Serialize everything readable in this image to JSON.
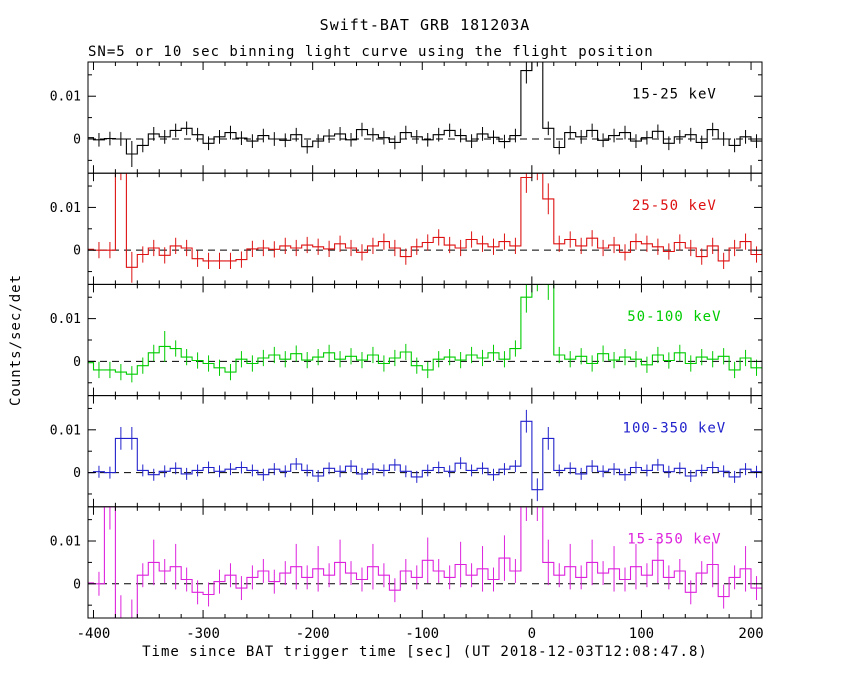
{
  "title": "Swift-BAT GRB 181203A",
  "subtitle": "SN=5 or 10 sec binning light curve using the flight position",
  "xlabel": "Time since BAT trigger time [sec] (UT 2018-12-03T12:08:47.8)",
  "ylabel": "Counts/sec/det",
  "chart_data": {
    "type": "line",
    "style": "stepped light curve with error bars, 5 stacked panels",
    "units_note": "values_milli and err_base_milli are in units of 0.001 counts/sec/det",
    "xlim": [
      -405,
      210
    ],
    "ylim_milli": [
      -8,
      18
    ],
    "x_start": -415,
    "x_step": 10,
    "bin_width_sec": 10,
    "xticks": [
      -400,
      -300,
      -200,
      -100,
      0,
      100,
      200
    ],
    "xtick_minor_step": 20,
    "yticks": [
      {
        "v": 0,
        "label": "0"
      },
      {
        "v": 10,
        "label": "0.01"
      }
    ],
    "ytick_minor": [
      -5,
      5,
      15
    ],
    "zero_line": "dashed",
    "series": [
      {
        "name": "15-25 keV",
        "color": "#000000",
        "err_base_milli": 1.6,
        "values_milli": [
          0,
          0.3,
          -0.2,
          0.1,
          0,
          -3.5,
          -1.5,
          1.2,
          0.5,
          2.0,
          2.5,
          1.0,
          -1.0,
          0.5,
          1.5,
          0.2,
          -0.5,
          0.8,
          0,
          -0.3,
          1.0,
          -1.8,
          -0.5,
          0.7,
          1.2,
          -0.2,
          2.2,
          1.0,
          0.3,
          -0.8,
          1.5,
          0.5,
          -0.2,
          1.0,
          2.0,
          0.8,
          -0.5,
          1.2,
          0.4,
          -0.6,
          0.8,
          16,
          20,
          2.5,
          -2.0,
          1.5,
          0.5,
          2.0,
          -0.3,
          0.8,
          1.5,
          -0.5,
          0.3,
          1.8,
          -1.0,
          0.5,
          1.0,
          -0.8,
          2.2,
          0,
          -1.5,
          0.5,
          -0.5
        ]
      },
      {
        "name": "25-50 keV",
        "color": "#dd1111",
        "err_base_milli": 1.9,
        "values_milli": [
          0,
          0.2,
          0,
          0,
          20,
          -4.0,
          -1.0,
          0.5,
          -1.2,
          1.0,
          0.5,
          -2.0,
          -2.5,
          -2.5,
          -2.5,
          -2.2,
          0.3,
          0.5,
          0.2,
          1.0,
          0.5,
          1.2,
          0.8,
          0.3,
          1.5,
          0.5,
          -0.5,
          1.0,
          2.0,
          0.5,
          -1.5,
          0.8,
          1.8,
          3.0,
          1.2,
          0.5,
          2.5,
          1.5,
          0.8,
          2.0,
          1.0,
          17,
          20,
          12,
          1.5,
          2.5,
          1.0,
          2.8,
          0.5,
          1.2,
          -0.5,
          2.0,
          1.5,
          0.8,
          -0.3,
          1.8,
          0.5,
          -1.5,
          1.0,
          -2.5,
          0.5,
          2.0,
          -1.0
        ]
      },
      {
        "name": "50-100 keV",
        "color": "#00cc00",
        "err_base_milli": 1.9,
        "values_milli": [
          0,
          -0.3,
          -2.0,
          -2.0,
          -2.5,
          -3.0,
          -1.0,
          2.0,
          3.5,
          3.0,
          1.0,
          0.2,
          -0.5,
          -1.5,
          -2.5,
          0.5,
          -0.5,
          0.8,
          1.5,
          0.5,
          1.8,
          0.3,
          1.0,
          2.0,
          0.5,
          1.2,
          0.3,
          1.5,
          -0.5,
          0.8,
          2.2,
          -1.0,
          -2.0,
          0.5,
          1.0,
          0.3,
          1.5,
          0.8,
          2.0,
          0.5,
          3.0,
          15,
          20,
          18,
          1.5,
          0.5,
          1.2,
          -0.5,
          1.8,
          0.3,
          1.0,
          0.5,
          -0.8,
          1.5,
          0.2,
          2.0,
          -0.5,
          1.0,
          0.5,
          1.2,
          -2.0,
          0.8,
          -1.5
        ]
      },
      {
        "name": "100-350 keV",
        "color": "#2222cc",
        "err_base_milli": 1.4,
        "values_milli": [
          0,
          0,
          0.2,
          0,
          8,
          8,
          0.5,
          -0.5,
          0.3,
          1.0,
          -0.3,
          0.5,
          1.2,
          0.3,
          0.8,
          1.2,
          0.5,
          -0.5,
          0.8,
          0.3,
          2.0,
          0.5,
          -0.8,
          1.0,
          0.3,
          1.5,
          -0.3,
          0.8,
          0.5,
          1.8,
          0.3,
          -1.0,
          0.5,
          1.2,
          0.3,
          2.2,
          0.5,
          1.0,
          -0.5,
          0.8,
          1.5,
          12,
          -4,
          8,
          0.5,
          1.0,
          -0.3,
          1.5,
          0.3,
          0.8,
          -0.5,
          1.2,
          0.5,
          1.8,
          0.2,
          1.0,
          -0.8,
          0.5,
          1.2,
          0.3,
          -1.0,
          0.8,
          0.2
        ]
      },
      {
        "name": "15-350 keV",
        "color": "#dd22dd",
        "err_base_milli": 2.8,
        "values_milli": [
          0,
          0.2,
          0,
          18,
          -8,
          -9,
          2,
          5,
          3,
          4,
          1,
          -2,
          -2.5,
          0.5,
          2,
          -1,
          1.5,
          3,
          0.5,
          2.5,
          4,
          1.5,
          3.5,
          2,
          5,
          2.5,
          1,
          4,
          2,
          -1.5,
          3,
          1.5,
          5.5,
          3,
          1.5,
          4.5,
          2,
          3.5,
          1,
          6,
          3,
          20,
          20,
          5,
          2,
          4,
          1.5,
          5,
          2.5,
          3.5,
          1,
          4,
          2,
          5.5,
          1.5,
          3,
          -2,
          2.5,
          4.5,
          -3,
          1.5,
          3.5,
          -1
        ]
      }
    ]
  }
}
